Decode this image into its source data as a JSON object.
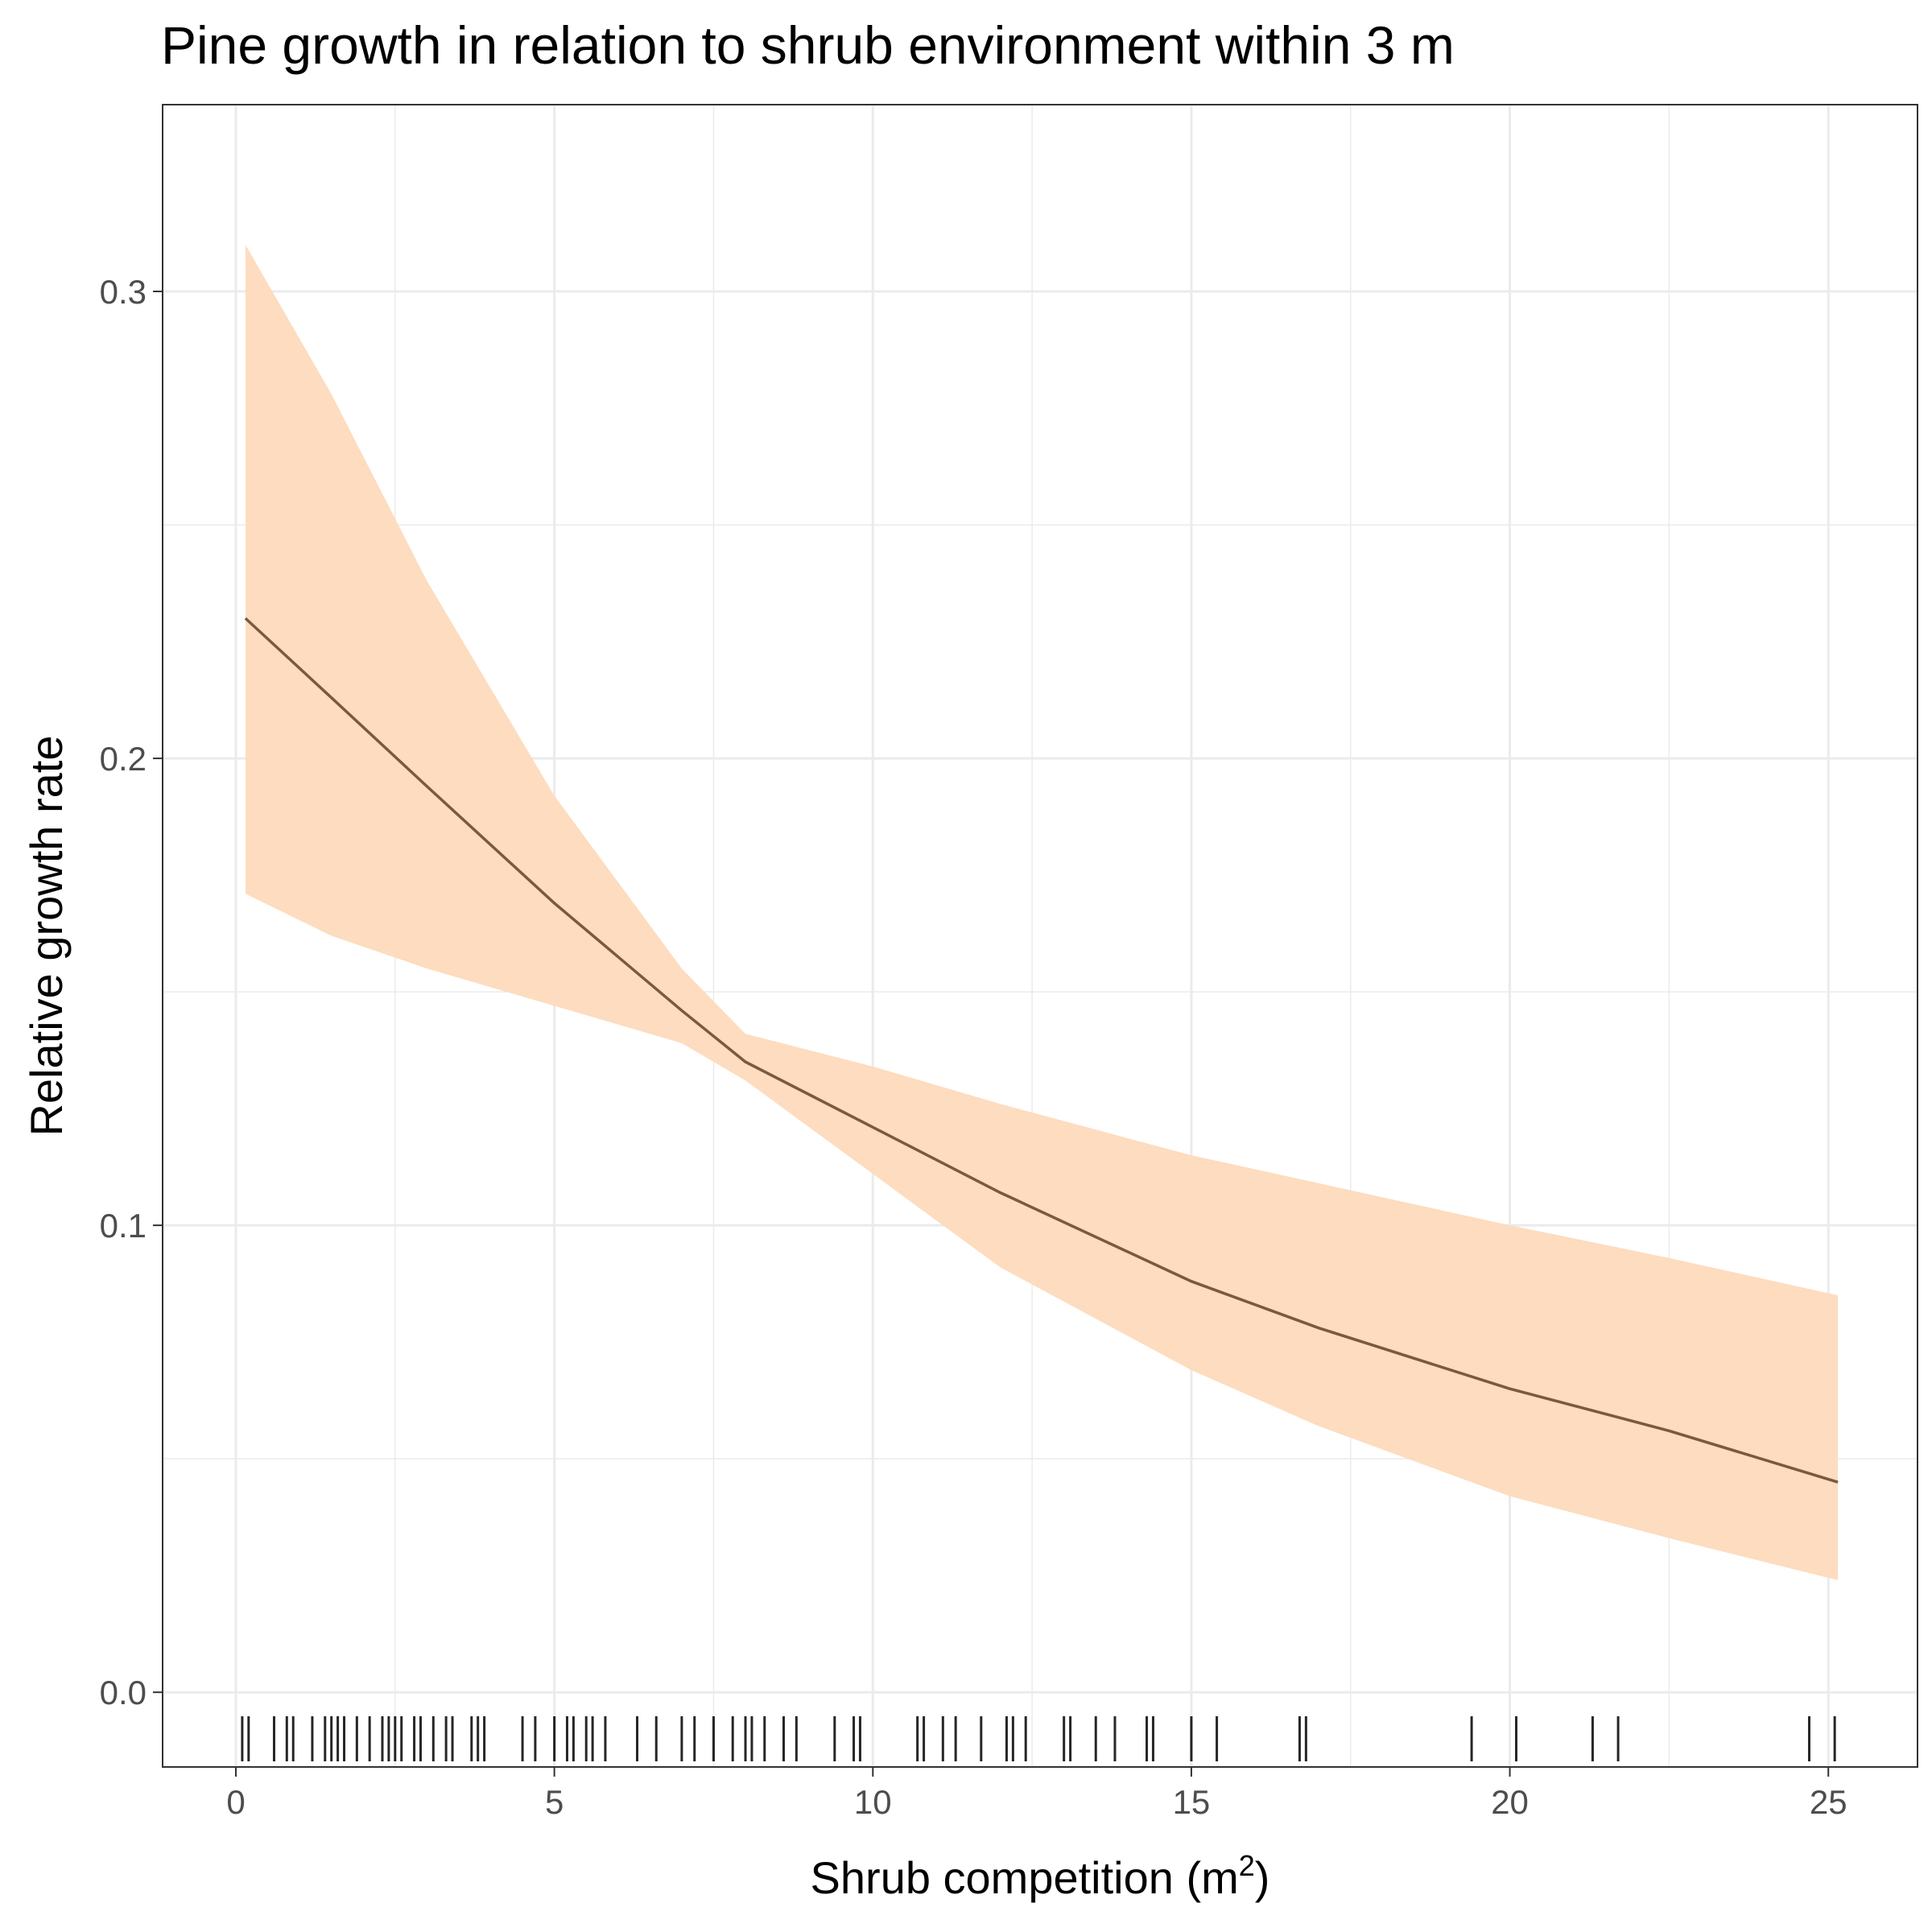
{
  "chart_data": {
    "type": "line",
    "title": "Pine growth in relation to shrub environment within 3 m",
    "xlabel": "Shrub competition (m",
    "xlabel_superscript": "2",
    "xlabel_close": ")",
    "ylabel": "Relative growth rate",
    "xlim": [
      -1.15,
      26.4
    ],
    "ylim": [
      -0.016,
      0.34
    ],
    "x_ticks": [
      0,
      5,
      10,
      15,
      20,
      25
    ],
    "x_tick_labels": [
      "0",
      "5",
      "10",
      "15",
      "20",
      "25"
    ],
    "y_ticks": [
      0.0,
      0.1,
      0.2,
      0.3
    ],
    "y_tick_labels": [
      "0.0",
      "0.1",
      "0.2",
      "0.3"
    ],
    "grid": true,
    "legend": "none",
    "series": [
      {
        "x": [
          0.15,
          1.5,
          3,
          5,
          7,
          8,
          10,
          12,
          15,
          17,
          20,
          22.5,
          25.15
        ],
        "y": [
          0.23,
          0.213,
          0.194,
          0.169,
          0.146,
          0.135,
          0.121,
          0.107,
          0.088,
          0.078,
          0.065,
          0.056,
          0.045
        ],
        "ci_upper": [
          0.31,
          0.278,
          0.238,
          0.192,
          0.155,
          0.141,
          0.134,
          0.126,
          0.115,
          0.109,
          0.1,
          0.093,
          0.085
        ],
        "ci_lower": [
          0.171,
          0.162,
          0.155,
          0.147,
          0.139,
          0.131,
          0.111,
          0.091,
          0.069,
          0.057,
          0.042,
          0.033,
          0.024
        ]
      }
    ],
    "rug_x": [
      0.1,
      0.2,
      0.6,
      0.8,
      0.9,
      1.2,
      1.4,
      1.5,
      1.6,
      1.7,
      1.9,
      2.1,
      2.3,
      2.4,
      2.5,
      2.6,
      2.8,
      2.9,
      3.1,
      3.3,
      3.4,
      3.7,
      3.8,
      3.9,
      4.5,
      4.7,
      5.0,
      5.2,
      5.3,
      5.5,
      5.6,
      5.8,
      6.3,
      6.6,
      7.0,
      7.2,
      7.5,
      7.8,
      8.0,
      8.1,
      8.3,
      8.6,
      8.8,
      9.4,
      9.7,
      9.8,
      10.7,
      10.8,
      11.1,
      11.3,
      11.7,
      12.1,
      12.2,
      12.4,
      13.0,
      13.1,
      13.5,
      13.8,
      14.3,
      14.4,
      15.0,
      15.4,
      16.7,
      16.8,
      19.4,
      20.1,
      21.3,
      21.7,
      24.7,
      25.1
    ],
    "colors": {
      "line": "#7a5a3f",
      "band": "#fddcbf",
      "grid": "#ebebeb",
      "rug": "#000000"
    }
  }
}
